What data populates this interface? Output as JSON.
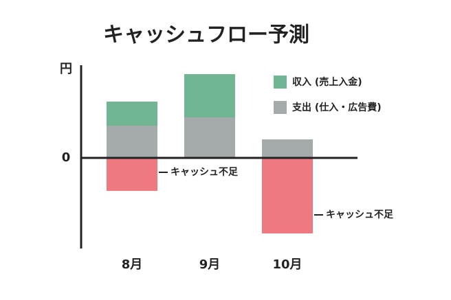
{
  "chart_data": {
    "type": "stacked_bar",
    "title": "キャッシュフロー予測",
    "y_label": "円",
    "categories": [
      "8月",
      "9月",
      "10月"
    ],
    "series": [
      {
        "name": "収入 (売上入金)",
        "color": "#72b592",
        "values": [
          35,
          63,
          null
        ],
        "legend": true
      },
      {
        "name": "支出 (仕入・広告費)",
        "color": "#a4abaa",
        "values": [
          47,
          59,
          27
        ],
        "legend": true
      },
      {
        "name": "キャッシュ不足",
        "color": "#ee7a80",
        "values": [
          -48,
          null,
          -110
        ],
        "legend": false
      }
    ],
    "ylim": [
      -132,
      135
    ],
    "yticks": [
      0
    ]
  }
}
